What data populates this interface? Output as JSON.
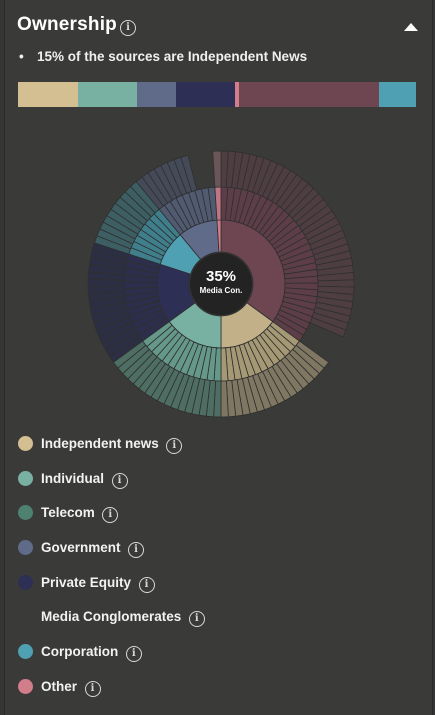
{
  "header": {
    "title": "Ownership",
    "info_glyph": "i"
  },
  "summary": {
    "bullet": "•",
    "text": "15% of the sources are Independent News"
  },
  "share_bar": [
    {
      "name": "Independent news",
      "share": 0.15,
      "color": "#d3bf92"
    },
    {
      "name": "Individual",
      "share": 0.148,
      "color": "#78b1a1"
    },
    {
      "name": "Government",
      "share": 0.098,
      "color": "#5f6b88"
    },
    {
      "name": "Private Equity",
      "share": 0.15,
      "color": "#2e2f55"
    },
    {
      "name": "Other",
      "share": 0.01,
      "color": "#d27d8a"
    },
    {
      "name": "Media Conglomerates",
      "share": 0.35,
      "color": "#6e4652"
    },
    {
      "name": "Corporation",
      "share": 0.094,
      "color": "#4fa0b2"
    }
  ],
  "chart_data": {
    "type": "sunburst",
    "center_value": "35%",
    "center_label": "Media Con.",
    "segments": [
      {
        "name": "Media Conglomerates",
        "share": 0.35,
        "inner": "#6e4652",
        "mid": "#5d3e48",
        "outer": "#4e3e42",
        "outer_span": 0.9
      },
      {
        "name": "Independent news",
        "share": 0.15,
        "inner": "#c2b088",
        "mid": "#a59874",
        "outer": "#807762",
        "outer_span": 1.0
      },
      {
        "name": "Individual",
        "share": 0.15,
        "inner": "#78b1a1",
        "mid": "#659889",
        "outer": "#4e6e63",
        "outer_span": 1.0
      },
      {
        "name": "Private Equity",
        "share": 0.15,
        "inner": "#2e2f55",
        "mid": "#2c2e4c",
        "outer": "#2c2f44",
        "outer_span": 1.0
      },
      {
        "name": "Corporation",
        "share": 0.09,
        "inner": "#4fa0b2",
        "mid": "#3f7f8c",
        "outer": "#3d5f64",
        "outer_span": 1.0
      },
      {
        "name": "Government",
        "share": 0.1,
        "inner": "#5f6b88",
        "mid": "#505a70",
        "outer": "#444a58",
        "outer_span": 0.7
      },
      {
        "name": "Other",
        "share": 0.01,
        "inner": "#d27d8a",
        "mid": "#c07682",
        "outer": "#6a5558",
        "outer_span": 1.0
      }
    ]
  },
  "legend": [
    {
      "label": "Independent news",
      "color": "#d3bf92"
    },
    {
      "label": "Individual",
      "color": "#78b1a1"
    },
    {
      "label": "Telecom",
      "color": "#4f8170"
    },
    {
      "label": "Government",
      "color": "#5f6b88"
    },
    {
      "label": "Private Equity",
      "color": "#2e2f55"
    },
    {
      "label": "Media Conglomerates",
      "color": ""
    },
    {
      "label": "Corporation",
      "color": "#4fa0b2"
    },
    {
      "label": "Other",
      "color": "#d27d8a"
    }
  ]
}
